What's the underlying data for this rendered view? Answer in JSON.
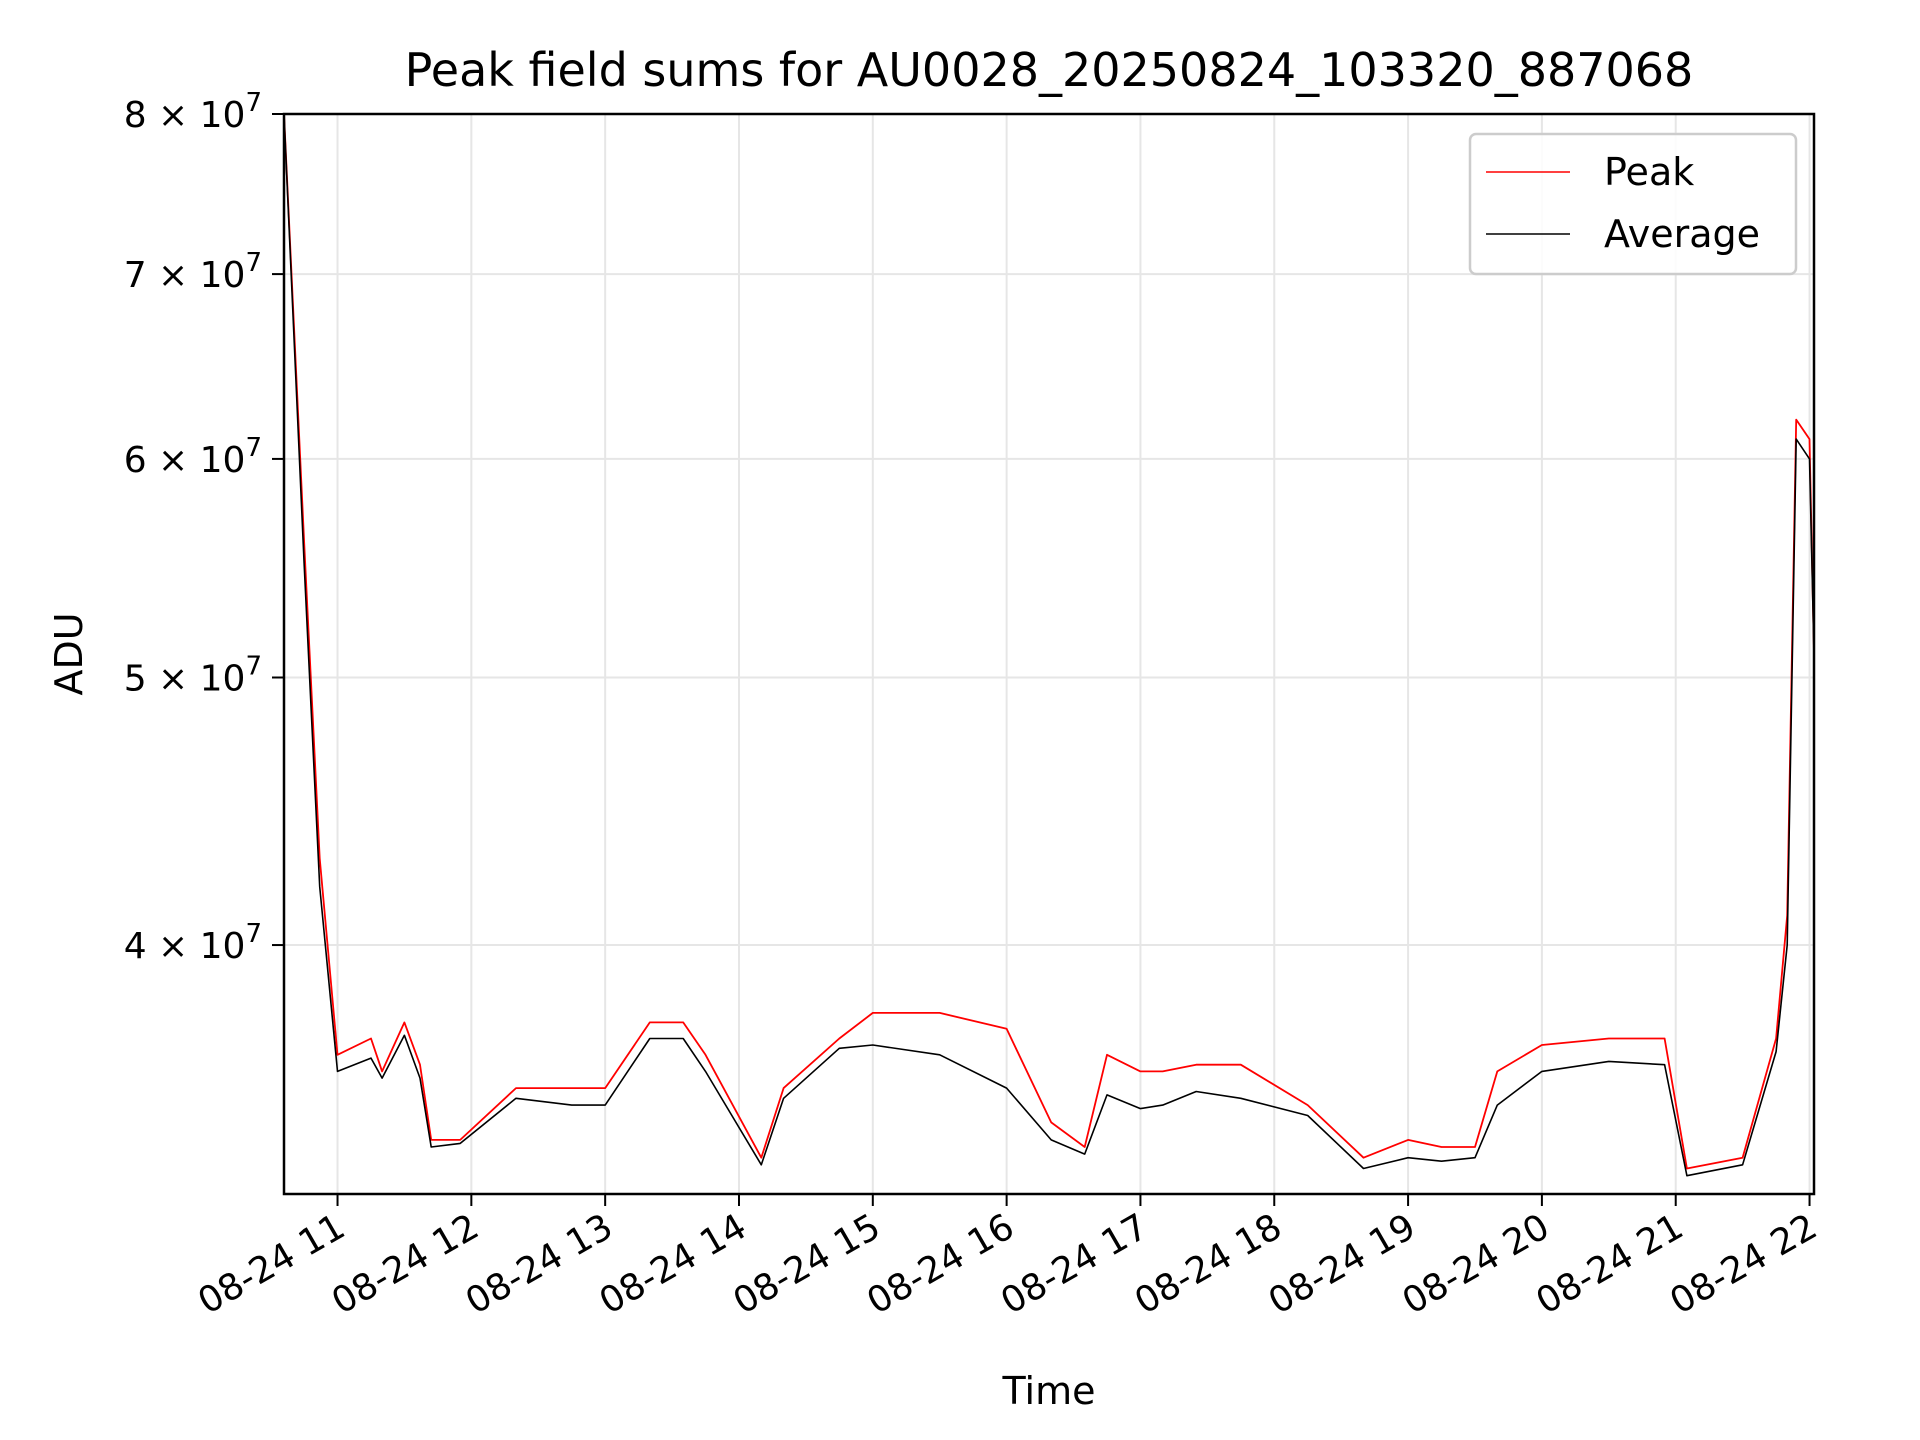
{
  "chart_data": {
    "type": "line",
    "title": "Peak field sums for AU0028_20250824_103320_887068",
    "xlabel": "Time",
    "ylabel": "ADU",
    "y_scale": "log",
    "ylim": [
      32500000,
      80000000
    ],
    "xlim": [
      "2025-08-24 10:36",
      "2025-08-24 22:02"
    ],
    "grid": true,
    "legend_position": "top-right",
    "x_ticks": [
      "08-24 11",
      "08-24 12",
      "08-24 13",
      "08-24 14",
      "08-24 15",
      "08-24 16",
      "08-24 17",
      "08-24 18",
      "08-24 19",
      "08-24 20",
      "08-24 21",
      "08-24 22"
    ],
    "y_ticks": [
      {
        "value": 40000000,
        "mantissa": "4",
        "exponent": "7"
      },
      {
        "value": 50000000,
        "mantissa": "5",
        "exponent": "7"
      },
      {
        "value": 60000000,
        "mantissa": "6",
        "exponent": "7"
      },
      {
        "value": 70000000,
        "mantissa": "7",
        "exponent": "7"
      },
      {
        "value": 80000000,
        "mantissa": "8",
        "exponent": "7"
      }
    ],
    "x": [
      "2025-08-24 10:36",
      "2025-08-24 10:45",
      "2025-08-24 10:52",
      "2025-08-24 11:00",
      "2025-08-24 11:15",
      "2025-08-24 11:20",
      "2025-08-24 11:30",
      "2025-08-24 11:37",
      "2025-08-24 11:42",
      "2025-08-24 11:55",
      "2025-08-24 12:20",
      "2025-08-24 12:45",
      "2025-08-24 13:00",
      "2025-08-24 13:20",
      "2025-08-24 13:35",
      "2025-08-24 13:45",
      "2025-08-24 14:10",
      "2025-08-24 14:20",
      "2025-08-24 14:45",
      "2025-08-24 15:00",
      "2025-08-24 15:30",
      "2025-08-24 16:00",
      "2025-08-24 16:20",
      "2025-08-24 16:35",
      "2025-08-24 16:45",
      "2025-08-24 17:00",
      "2025-08-24 17:10",
      "2025-08-24 17:25",
      "2025-08-24 17:45",
      "2025-08-24 18:15",
      "2025-08-24 18:40",
      "2025-08-24 19:00",
      "2025-08-24 19:15",
      "2025-08-24 19:30",
      "2025-08-24 19:40",
      "2025-08-24 20:00",
      "2025-08-24 20:30",
      "2025-08-24 20:55",
      "2025-08-24 21:05",
      "2025-08-24 21:30",
      "2025-08-24 21:45",
      "2025-08-24 21:50",
      "2025-08-24 21:54",
      "2025-08-24 22:00",
      "2025-08-24 22:02"
    ],
    "series": [
      {
        "name": "Peak",
        "color": "#ff0000",
        "values": [
          80000000,
          56000000,
          43000000,
          36500000,
          37000000,
          36000000,
          37500000,
          36200000,
          34000000,
          34000000,
          35500000,
          35500000,
          35500000,
          37500000,
          37500000,
          36500000,
          33500000,
          35500000,
          37000000,
          37800000,
          37800000,
          37300000,
          34500000,
          33800000,
          36500000,
          36000000,
          36000000,
          36200000,
          36200000,
          35000000,
          33500000,
          34000000,
          33800000,
          33800000,
          36000000,
          36800000,
          37000000,
          37000000,
          33200000,
          33500000,
          37000000,
          41000000,
          62000000,
          61000000,
          51000000
        ]
      },
      {
        "name": "Average",
        "color": "#000000",
        "values": [
          80000000,
          55000000,
          42000000,
          36000000,
          36400000,
          35800000,
          37100000,
          35800000,
          33800000,
          33900000,
          35200000,
          35000000,
          35000000,
          37000000,
          37000000,
          36000000,
          33300000,
          35200000,
          36700000,
          36800000,
          36500000,
          35500000,
          34000000,
          33600000,
          35300000,
          34900000,
          35000000,
          35400000,
          35200000,
          34700000,
          33200000,
          33500000,
          33400000,
          33500000,
          35000000,
          36000000,
          36300000,
          36200000,
          33000000,
          33300000,
          36600000,
          40000000,
          61000000,
          60000000,
          51000000
        ]
      }
    ]
  }
}
